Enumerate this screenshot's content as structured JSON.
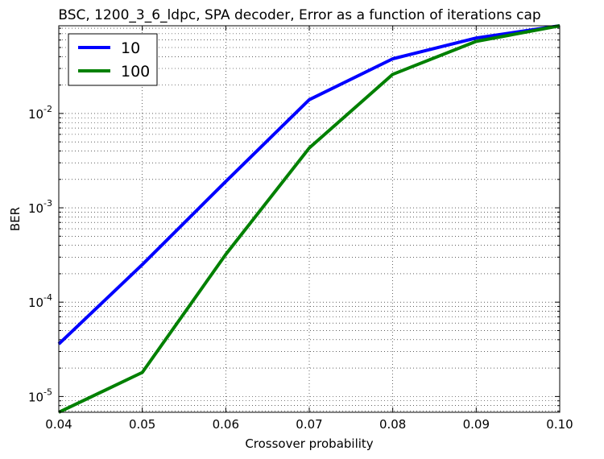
{
  "chart_data": {
    "type": "line",
    "title": "BSC, 1200_3_6_ldpc, SPA decoder, Error as a function of iterations cap",
    "xlabel": "Crossover probability",
    "ylabel": "BER",
    "xlim": [
      0.04,
      0.1
    ],
    "ylim": [
      6.8e-06,
      0.085
    ],
    "yscale": "log",
    "grid": true,
    "legend_position": "top-left",
    "x_ticks": [
      "0.04",
      "0.05",
      "0.06",
      "0.07",
      "0.08",
      "0.09",
      "0.10"
    ],
    "y_ticks": [
      {
        "base": "10",
        "exp": "-2",
        "value": 0.01
      },
      {
        "base": "10",
        "exp": "-3",
        "value": 0.001
      },
      {
        "base": "10",
        "exp": "-4",
        "value": 0.0001
      },
      {
        "base": "10",
        "exp": "-5",
        "value": 1e-05
      }
    ],
    "x": [
      0.04,
      0.05,
      0.06,
      0.07,
      0.08,
      0.09,
      0.1
    ],
    "series": [
      {
        "name": "10",
        "color": "#0000ff",
        "values": [
          3.6e-05,
          0.00025,
          0.0019,
          0.014,
          0.038,
          0.063,
          0.085
        ]
      },
      {
        "name": "100",
        "color": "#008000",
        "values": [
          6.8e-06,
          1.8e-05,
          0.00032,
          0.0043,
          0.026,
          0.058,
          0.085
        ]
      }
    ]
  }
}
